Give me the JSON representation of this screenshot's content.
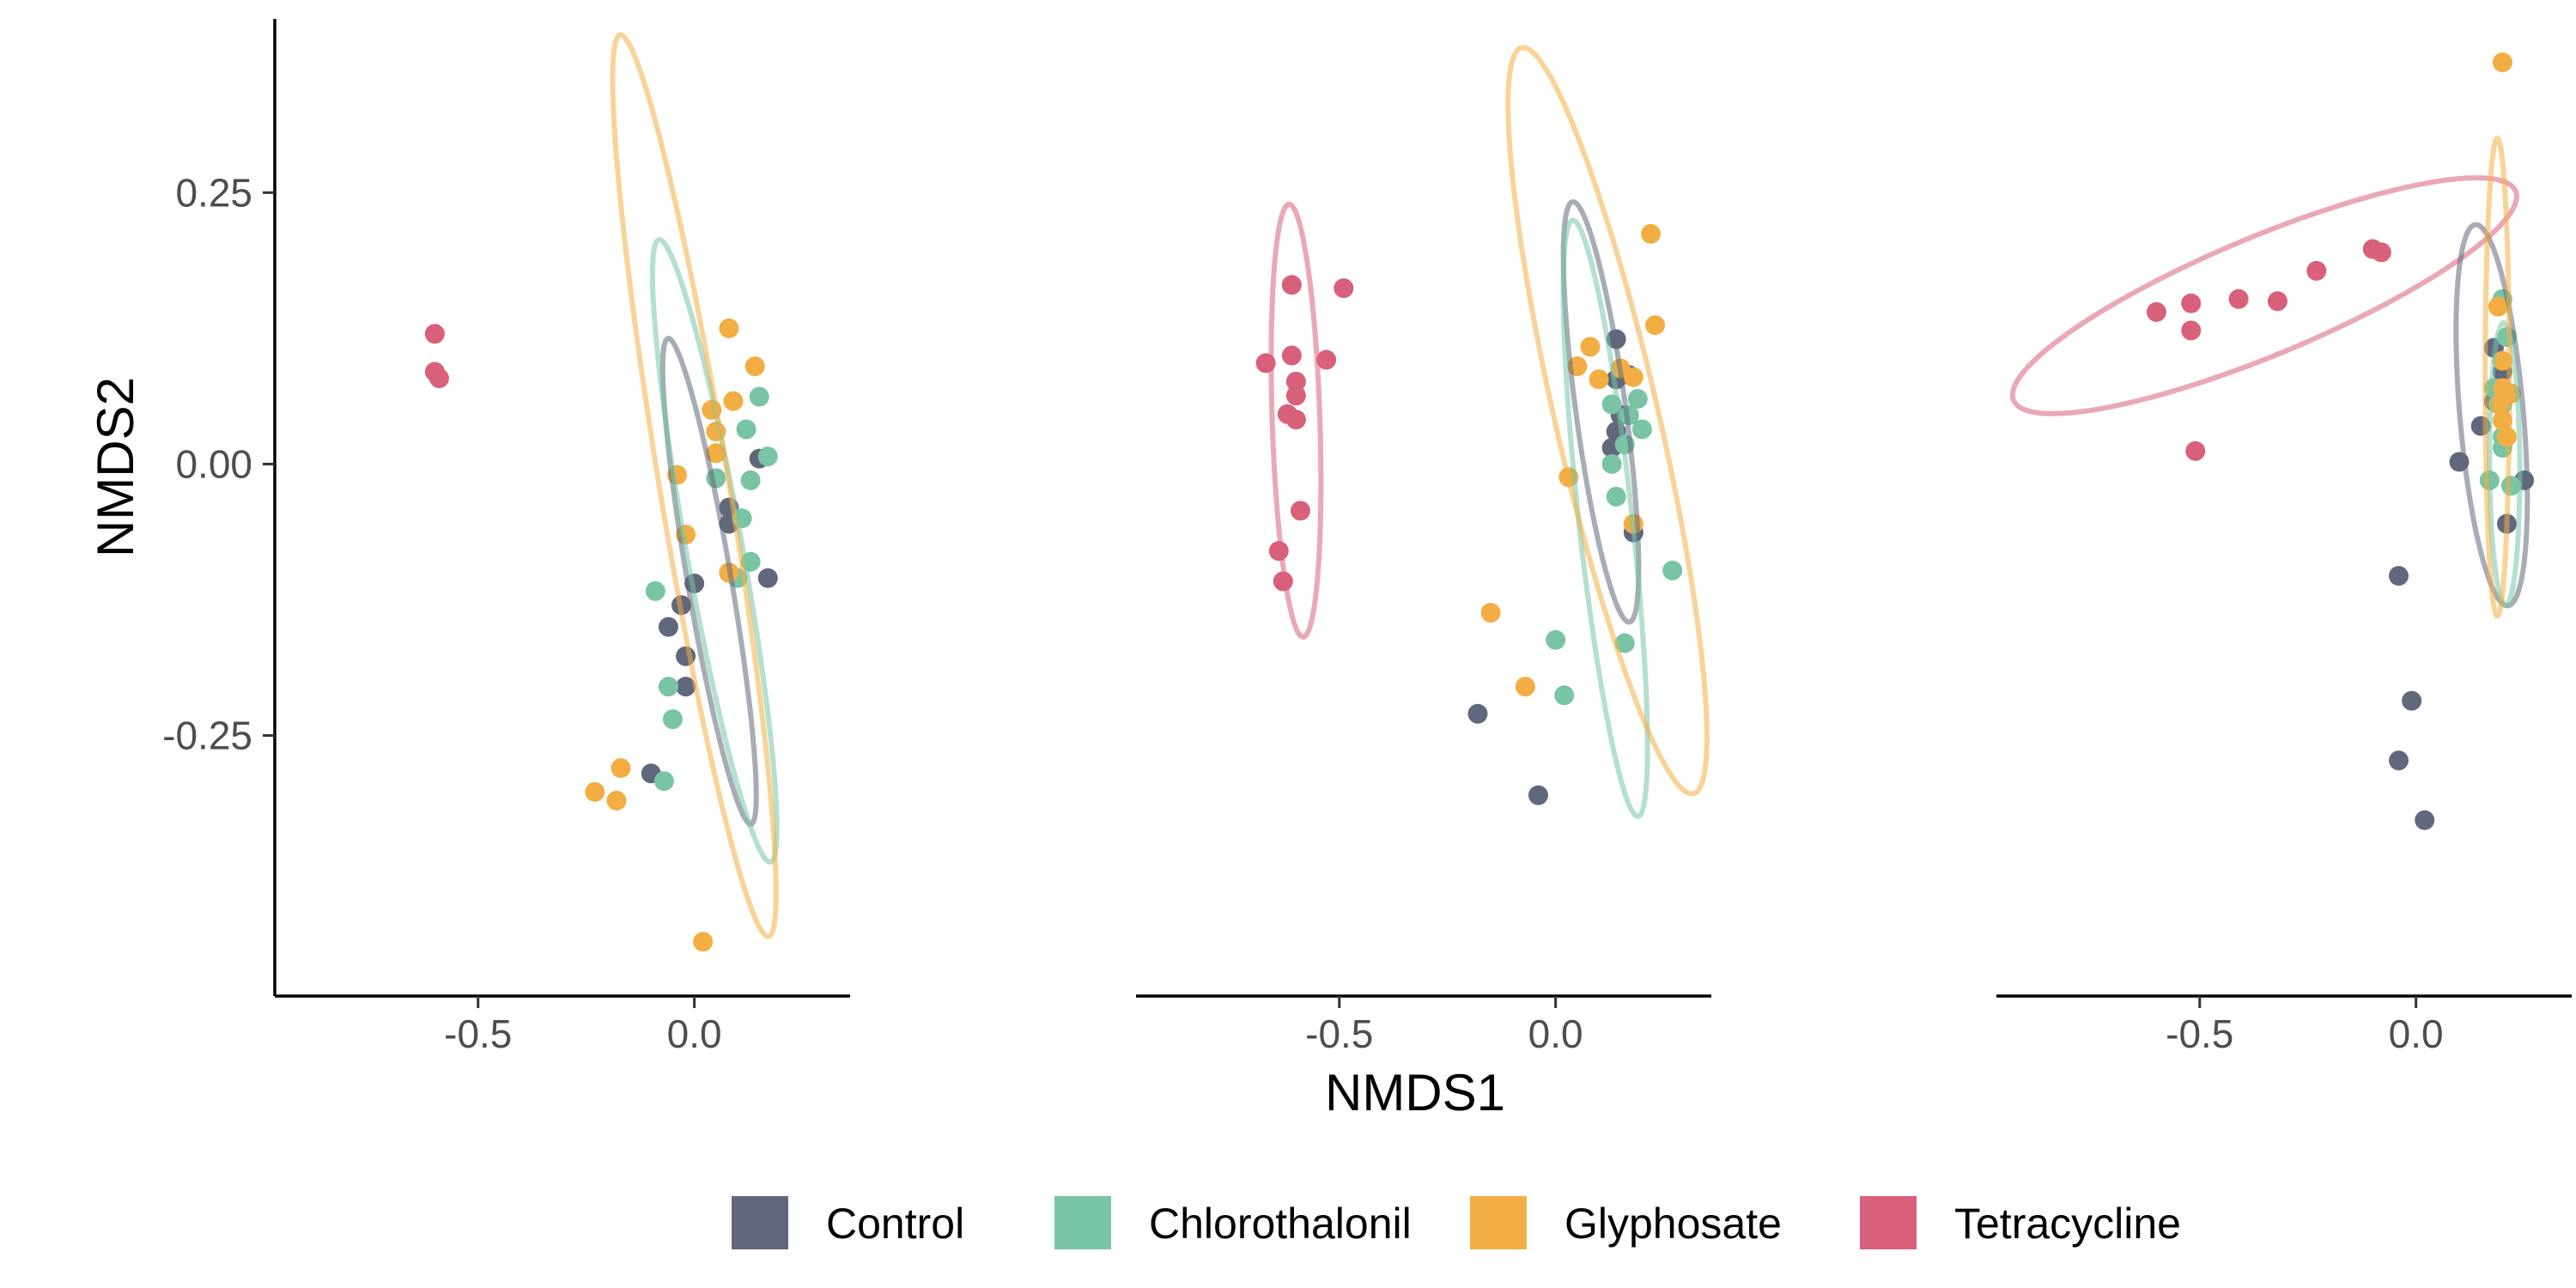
{
  "chart_data": {
    "type": "scatter",
    "xlabel": "NMDS1",
    "ylabel": "NMDS2",
    "xlim": [
      -0.97,
      0.36
    ],
    "ylim": [
      -0.49,
      0.41
    ],
    "x_ticks": [
      {
        "value": -0.5,
        "label": "-0.5"
      },
      {
        "value": 0.0,
        "label": "0.0"
      }
    ],
    "y_ticks": [
      {
        "value": 0.25,
        "label": "0.25"
      },
      {
        "value": 0.0,
        "label": "0.00"
      },
      {
        "value": -0.25,
        "label": "-0.25"
      }
    ],
    "legend_position": "bottom",
    "groups": [
      {
        "name": "Control",
        "color": "#61687c"
      },
      {
        "name": "Chlorothalonil",
        "color": "#79c4a5"
      },
      {
        "name": "Glyphosate",
        "color": "#f2ae43"
      },
      {
        "name": "Tetracycline",
        "color": "#d9607a"
      }
    ],
    "panels": [
      {
        "show_y_axis": true,
        "points": [
          {
            "g": "Tetracycline",
            "x": -0.6,
            "y": 0.12
          },
          {
            "g": "Tetracycline",
            "x": -0.6,
            "y": 0.085
          },
          {
            "g": "Tetracycline",
            "x": -0.59,
            "y": 0.079
          },
          {
            "g": "Control",
            "x": 0.0,
            "y": -0.11
          },
          {
            "g": "Control",
            "x": -0.03,
            "y": -0.13
          },
          {
            "g": "Control",
            "x": -0.06,
            "y": -0.15
          },
          {
            "g": "Control",
            "x": -0.02,
            "y": -0.177
          },
          {
            "g": "Control",
            "x": -0.02,
            "y": -0.205
          },
          {
            "g": "Control",
            "x": -0.1,
            "y": -0.285
          },
          {
            "g": "Control",
            "x": 0.08,
            "y": -0.04
          },
          {
            "g": "Control",
            "x": 0.08,
            "y": -0.055
          },
          {
            "g": "Control",
            "x": 0.15,
            "y": 0.005
          },
          {
            "g": "Control",
            "x": 0.08,
            "y": -0.1
          },
          {
            "g": "Control",
            "x": 0.17,
            "y": -0.105
          },
          {
            "g": "Chlorothalonil",
            "x": 0.15,
            "y": 0.062
          },
          {
            "g": "Chlorothalonil",
            "x": 0.12,
            "y": 0.032
          },
          {
            "g": "Chlorothalonil",
            "x": 0.17,
            "y": 0.007
          },
          {
            "g": "Chlorothalonil",
            "x": 0.05,
            "y": -0.013
          },
          {
            "g": "Chlorothalonil",
            "x": 0.13,
            "y": -0.015
          },
          {
            "g": "Chlorothalonil",
            "x": 0.11,
            "y": -0.05
          },
          {
            "g": "Chlorothalonil",
            "x": 0.13,
            "y": -0.09
          },
          {
            "g": "Chlorothalonil",
            "x": 0.1,
            "y": -0.105
          },
          {
            "g": "Chlorothalonil",
            "x": -0.09,
            "y": -0.117
          },
          {
            "g": "Chlorothalonil",
            "x": -0.06,
            "y": -0.205
          },
          {
            "g": "Chlorothalonil",
            "x": -0.05,
            "y": -0.235
          },
          {
            "g": "Chlorothalonil",
            "x": -0.07,
            "y": -0.292
          },
          {
            "g": "Glyphosate",
            "x": 0.08,
            "y": 0.125
          },
          {
            "g": "Glyphosate",
            "x": 0.14,
            "y": 0.09
          },
          {
            "g": "Glyphosate",
            "x": 0.09,
            "y": 0.058
          },
          {
            "g": "Glyphosate",
            "x": 0.04,
            "y": 0.05
          },
          {
            "g": "Glyphosate",
            "x": 0.05,
            "y": 0.03
          },
          {
            "g": "Glyphosate",
            "x": 0.05,
            "y": 0.01
          },
          {
            "g": "Glyphosate",
            "x": -0.04,
            "y": -0.01
          },
          {
            "g": "Glyphosate",
            "x": -0.02,
            "y": -0.065
          },
          {
            "g": "Glyphosate",
            "x": 0.08,
            "y": -0.1
          },
          {
            "g": "Glyphosate",
            "x": -0.17,
            "y": -0.28
          },
          {
            "g": "Glyphosate",
            "x": -0.23,
            "y": -0.302
          },
          {
            "g": "Glyphosate",
            "x": -0.18,
            "y": -0.31
          },
          {
            "g": "Glyphosate",
            "x": 0.02,
            "y": -0.44
          }
        ],
        "ellipses": [
          {
            "g": "Control",
            "cx": 0.035,
            "cy": -0.108,
            "rx": 0.047,
            "ry": 0.244,
            "angle": 24
          },
          {
            "g": "Chlorothalonil",
            "cx": 0.047,
            "cy": -0.08,
            "rx": 0.06,
            "ry": 0.315,
            "angle": 25
          },
          {
            "g": "Glyphosate",
            "cx": 0.0,
            "cy": -0.02,
            "rx": 0.075,
            "ry": 0.45,
            "angle": 23
          }
        ]
      },
      {
        "show_y_axis": false,
        "points": [
          {
            "g": "Tetracycline",
            "x": -0.61,
            "y": 0.165
          },
          {
            "g": "Tetracycline",
            "x": -0.49,
            "y": 0.162
          },
          {
            "g": "Tetracycline",
            "x": -0.61,
            "y": 0.1
          },
          {
            "g": "Tetracycline",
            "x": -0.53,
            "y": 0.096
          },
          {
            "g": "Tetracycline",
            "x": -0.67,
            "y": 0.093
          },
          {
            "g": "Tetracycline",
            "x": -0.6,
            "y": 0.076
          },
          {
            "g": "Tetracycline",
            "x": -0.6,
            "y": 0.063
          },
          {
            "g": "Tetracycline",
            "x": -0.62,
            "y": 0.046
          },
          {
            "g": "Tetracycline",
            "x": -0.6,
            "y": 0.041
          },
          {
            "g": "Tetracycline",
            "x": -0.59,
            "y": -0.043
          },
          {
            "g": "Tetracycline",
            "x": -0.64,
            "y": -0.08
          },
          {
            "g": "Tetracycline",
            "x": -0.63,
            "y": -0.108
          },
          {
            "g": "Control",
            "x": 0.14,
            "y": 0.115
          },
          {
            "g": "Control",
            "x": 0.14,
            "y": 0.078
          },
          {
            "g": "Control",
            "x": 0.17,
            "y": 0.082
          },
          {
            "g": "Control",
            "x": 0.15,
            "y": 0.045
          },
          {
            "g": "Control",
            "x": 0.14,
            "y": 0.03
          },
          {
            "g": "Control",
            "x": 0.13,
            "y": 0.015
          },
          {
            "g": "Control",
            "x": 0.18,
            "y": -0.063
          },
          {
            "g": "Control",
            "x": -0.18,
            "y": -0.23
          },
          {
            "g": "Control",
            "x": -0.04,
            "y": -0.305
          },
          {
            "g": "Chlorothalonil",
            "x": 0.13,
            "y": 0.055
          },
          {
            "g": "Chlorothalonil",
            "x": 0.19,
            "y": 0.06
          },
          {
            "g": "Chlorothalonil",
            "x": 0.17,
            "y": 0.045
          },
          {
            "g": "Chlorothalonil",
            "x": 0.2,
            "y": 0.032
          },
          {
            "g": "Chlorothalonil",
            "x": 0.16,
            "y": 0.018
          },
          {
            "g": "Chlorothalonil",
            "x": 0.13,
            "y": 0.0
          },
          {
            "g": "Chlorothalonil",
            "x": 0.14,
            "y": -0.03
          },
          {
            "g": "Chlorothalonil",
            "x": 0.27,
            "y": -0.098
          },
          {
            "g": "Chlorothalonil",
            "x": 0.0,
            "y": -0.162
          },
          {
            "g": "Chlorothalonil",
            "x": 0.16,
            "y": -0.165
          },
          {
            "g": "Chlorothalonil",
            "x": 0.02,
            "y": -0.213
          },
          {
            "g": "Glyphosate",
            "x": 0.22,
            "y": 0.212
          },
          {
            "g": "Glyphosate",
            "x": 0.23,
            "y": 0.128
          },
          {
            "g": "Glyphosate",
            "x": 0.08,
            "y": 0.108
          },
          {
            "g": "Glyphosate",
            "x": 0.05,
            "y": 0.09
          },
          {
            "g": "Glyphosate",
            "x": 0.15,
            "y": 0.088
          },
          {
            "g": "Glyphosate",
            "x": 0.1,
            "y": 0.078
          },
          {
            "g": "Glyphosate",
            "x": 0.18,
            "y": 0.08
          },
          {
            "g": "Glyphosate",
            "x": 0.03,
            "y": -0.012
          },
          {
            "g": "Glyphosate",
            "x": 0.18,
            "y": -0.055
          },
          {
            "g": "Glyphosate",
            "x": -0.15,
            "y": -0.137
          },
          {
            "g": "Glyphosate",
            "x": -0.07,
            "y": -0.205
          }
        ],
        "ellipses": [
          {
            "g": "Tetracycline",
            "cx": -0.6,
            "cy": 0.04,
            "rx": 0.055,
            "ry": 0.2,
            "angle": 5
          },
          {
            "g": "Control",
            "cx": 0.105,
            "cy": 0.048,
            "rx": 0.055,
            "ry": 0.205,
            "angle": 20
          },
          {
            "g": "Chlorothalonil",
            "cx": 0.115,
            "cy": -0.05,
            "rx": 0.06,
            "ry": 0.285,
            "angle": 16
          },
          {
            "g": "Glyphosate",
            "cx": 0.12,
            "cy": 0.04,
            "rx": 0.105,
            "ry": 0.4,
            "angle": 32
          }
        ]
      },
      {
        "show_y_axis": false,
        "points": [
          {
            "g": "Tetracycline",
            "x": -0.1,
            "y": 0.198
          },
          {
            "g": "Tetracycline",
            "x": -0.08,
            "y": 0.195
          },
          {
            "g": "Tetracycline",
            "x": -0.23,
            "y": 0.178
          },
          {
            "g": "Tetracycline",
            "x": -0.41,
            "y": 0.152
          },
          {
            "g": "Tetracycline",
            "x": -0.32,
            "y": 0.15
          },
          {
            "g": "Tetracycline",
            "x": -0.52,
            "y": 0.148
          },
          {
            "g": "Tetracycline",
            "x": -0.6,
            "y": 0.14
          },
          {
            "g": "Tetracycline",
            "x": -0.52,
            "y": 0.123
          },
          {
            "g": "Tetracycline",
            "x": -0.51,
            "y": 0.012
          },
          {
            "g": "Control",
            "x": 0.18,
            "y": 0.107
          },
          {
            "g": "Control",
            "x": 0.2,
            "y": 0.085
          },
          {
            "g": "Control",
            "x": 0.18,
            "y": 0.058
          },
          {
            "g": "Control",
            "x": 0.15,
            "y": 0.035
          },
          {
            "g": "Control",
            "x": 0.1,
            "y": 0.002
          },
          {
            "g": "Control",
            "x": 0.25,
            "y": -0.015
          },
          {
            "g": "Control",
            "x": 0.21,
            "y": -0.055
          },
          {
            "g": "Control",
            "x": -0.04,
            "y": -0.103
          },
          {
            "g": "Control",
            "x": -0.01,
            "y": -0.218
          },
          {
            "g": "Control",
            "x": -0.04,
            "y": -0.273
          },
          {
            "g": "Control",
            "x": 0.02,
            "y": -0.328
          },
          {
            "g": "Chlorothalonil",
            "x": 0.2,
            "y": 0.152
          },
          {
            "g": "Chlorothalonil",
            "x": 0.21,
            "y": 0.117
          },
          {
            "g": "Chlorothalonil",
            "x": 0.18,
            "y": 0.07
          },
          {
            "g": "Chlorothalonil",
            "x": 0.2,
            "y": 0.055
          },
          {
            "g": "Chlorothalonil",
            "x": 0.2,
            "y": 0.025
          },
          {
            "g": "Chlorothalonil",
            "x": 0.2,
            "y": 0.015
          },
          {
            "g": "Chlorothalonil",
            "x": 0.17,
            "y": -0.015
          },
          {
            "g": "Chlorothalonil",
            "x": 0.22,
            "y": -0.02
          },
          {
            "g": "Glyphosate",
            "x": 0.2,
            "y": 0.37
          },
          {
            "g": "Glyphosate",
            "x": 0.19,
            "y": 0.145
          },
          {
            "g": "Glyphosate",
            "x": 0.2,
            "y": 0.095
          },
          {
            "g": "Glyphosate",
            "x": 0.2,
            "y": 0.07
          },
          {
            "g": "Glyphosate",
            "x": 0.22,
            "y": 0.065
          },
          {
            "g": "Glyphosate",
            "x": 0.19,
            "y": 0.055
          },
          {
            "g": "Glyphosate",
            "x": 0.2,
            "y": 0.04
          },
          {
            "g": "Glyphosate",
            "x": 0.21,
            "y": 0.025
          }
        ],
        "ellipses": [
          {
            "g": "Tetracycline",
            "cx": -0.35,
            "cy": 0.155,
            "rx": 0.59,
            "ry": 0.058,
            "angle": 9
          },
          {
            "g": "Control",
            "cx": 0.175,
            "cy": 0.045,
            "rx": 0.072,
            "ry": 0.18,
            "angle": 14
          },
          {
            "g": "Chlorothalonil",
            "cx": 0.205,
            "cy": 0.0,
            "rx": 0.035,
            "ry": 0.13,
            "angle": 1
          },
          {
            "g": "Glyphosate",
            "cx": 0.188,
            "cy": 0.08,
            "rx": 0.028,
            "ry": 0.22,
            "angle": 0
          }
        ]
      }
    ]
  }
}
